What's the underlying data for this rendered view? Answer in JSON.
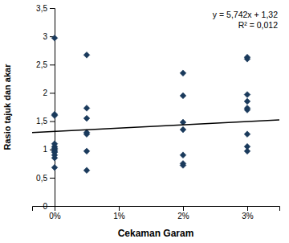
{
  "chart_data": {
    "type": "scatter",
    "xlabel": "Cekaman Garam",
    "ylabel": "Rasio tajuk dan akar",
    "annotations": [
      "y = 5,742x + 1,32",
      "R² = 0,012"
    ],
    "xlim": [
      -0.35,
      3.5
    ],
    "ylim": [
      0,
      3.5
    ],
    "xticks": [
      {
        "value": 0,
        "label": "0%"
      },
      {
        "value": 1,
        "label": "1%"
      },
      {
        "value": 2,
        "label": "2%"
      },
      {
        "value": 3,
        "label": "3%"
      }
    ],
    "yticks": [
      0,
      {
        "value": 0.5,
        "label": "0,5"
      },
      1,
      {
        "value": 1.5,
        "label": "1,5"
      },
      2,
      {
        "value": 2.5,
        "label": "2,5"
      },
      3,
      {
        "value": 3.5,
        "label": "3,5"
      }
    ],
    "grid": false,
    "series": [
      {
        "type": "scatter",
        "marker": "diamond",
        "color": "#1a3a5c",
        "x": [
          0,
          0,
          0,
          0,
          0,
          0,
          0,
          0,
          0,
          0,
          0,
          0,
          0.5,
          0.5,
          0.5,
          0.5,
          0.5,
          0.5,
          0.5,
          2,
          2,
          2,
          2,
          2,
          2,
          2,
          3,
          3,
          3,
          3,
          3,
          3,
          3,
          3,
          3
        ],
        "values": [
          2.97,
          1.62,
          1.6,
          1.1,
          1.05,
          1.02,
          1.0,
          0.97,
          0.95,
          0.9,
          0.85,
          0.68,
          2.67,
          1.73,
          1.55,
          1.3,
          1.27,
          0.97,
          0.63,
          2.35,
          1.95,
          1.48,
          1.35,
          0.9,
          0.75,
          0.72,
          2.63,
          2.6,
          1.97,
          1.85,
          1.73,
          1.7,
          1.27,
          1.05,
          0.97
        ]
      },
      {
        "type": "line",
        "line_style": "solid",
        "color": "#000000",
        "x": [
          -0.35,
          3.5
        ],
        "values": [
          1.299903,
          1.52097
        ]
      }
    ]
  }
}
